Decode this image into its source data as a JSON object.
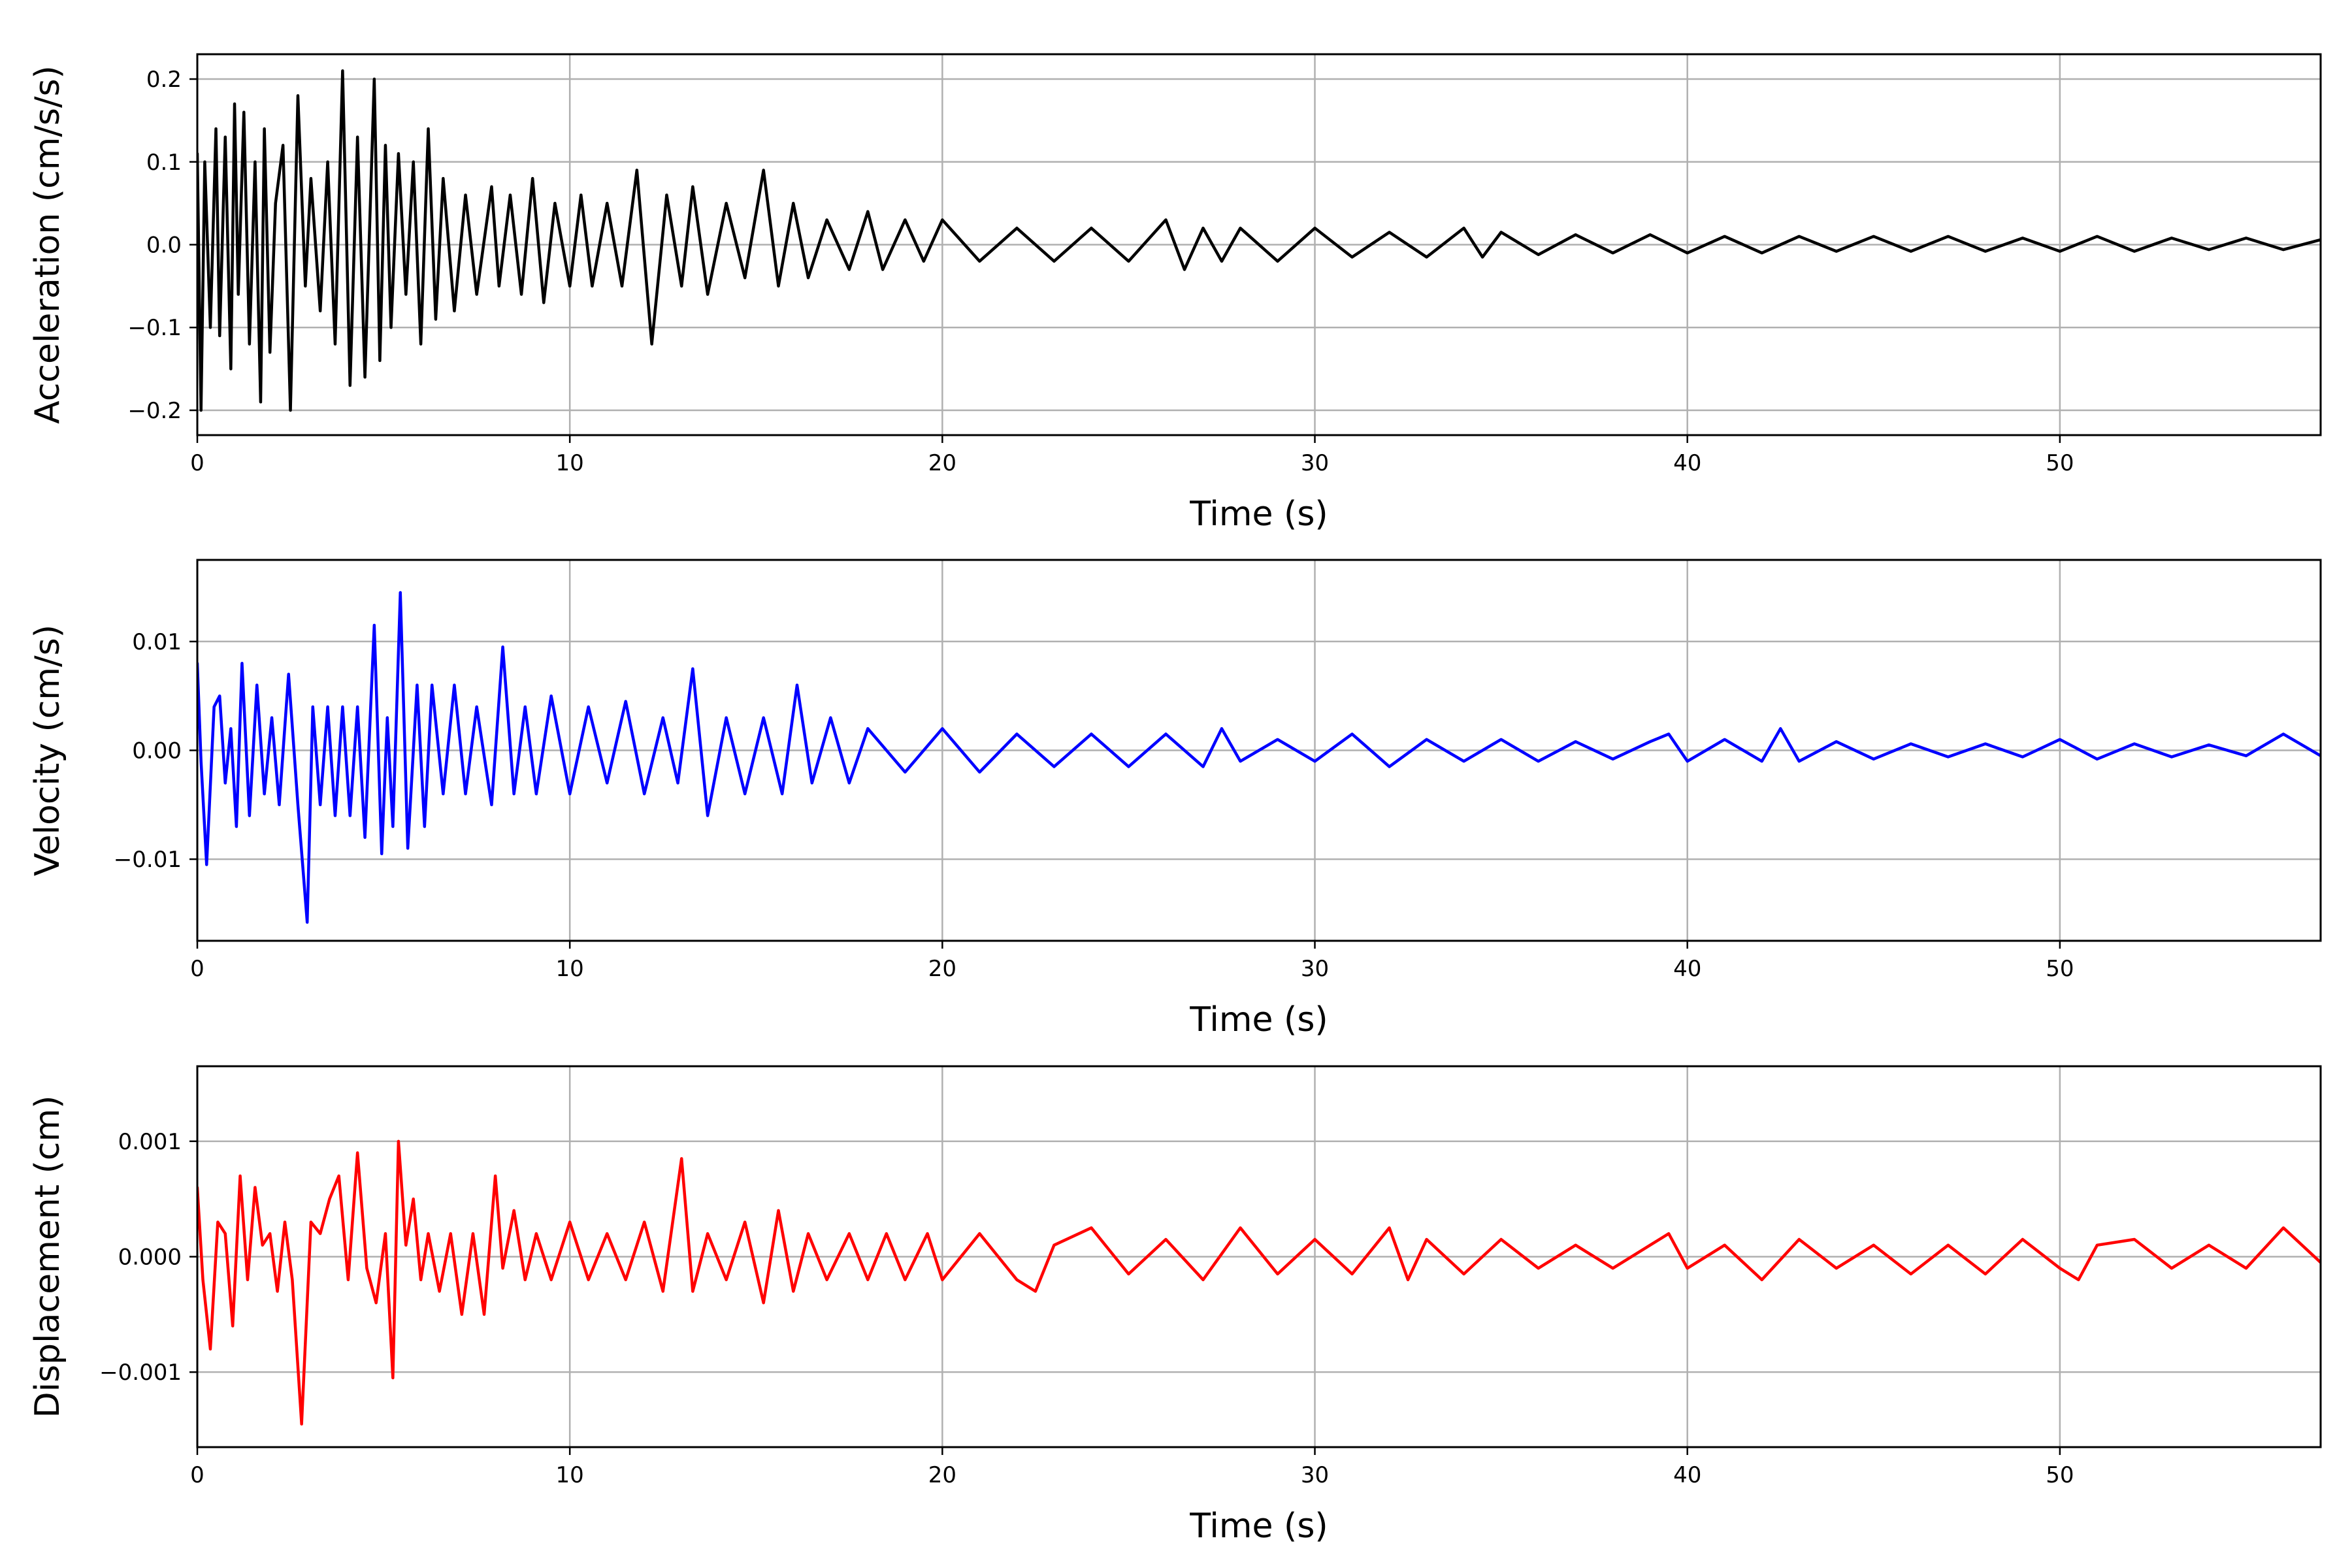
{
  "chart_data": [
    {
      "type": "line",
      "xlabel": "Time (s)",
      "ylabel": "Acceleration (cm/s/s)",
      "xlim": [
        0,
        57
      ],
      "ylim": [
        -0.23,
        0.23
      ],
      "xticks": [
        0,
        10,
        20,
        30,
        40,
        50
      ],
      "xtick_labels": [
        "0",
        "10",
        "20",
        "30",
        "40",
        "50"
      ],
      "yticks": [
        -0.2,
        -0.1,
        0.0,
        0.1,
        0.2
      ],
      "ytick_labels": [
        "−0.2",
        "−0.1",
        "0.0",
        "0.1",
        "0.2"
      ],
      "grid": true,
      "color": "#000000",
      "series": [
        {
          "x": [
            0,
            0.1,
            0.2,
            0.35,
            0.5,
            0.6,
            0.75,
            0.9,
            1.0,
            1.1,
            1.25,
            1.4,
            1.55,
            1.7,
            1.8,
            1.95,
            2.1,
            2.3,
            2.5,
            2.7,
            2.9,
            3.05,
            3.3,
            3.5,
            3.7,
            3.9,
            4.1,
            4.3,
            4.5,
            4.75,
            4.9,
            5.05,
            5.2,
            5.4,
            5.6,
            5.8,
            6.0,
            6.2,
            6.4,
            6.6,
            6.9,
            7.2,
            7.5,
            7.9,
            8.1,
            8.4,
            8.7,
            9.0,
            9.3,
            9.6,
            10.0,
            10.3,
            10.6,
            11.0,
            11.4,
            11.8,
            12.2,
            12.6,
            13.0,
            13.3,
            13.7,
            14.2,
            14.7,
            15.2,
            15.6,
            16.0,
            16.4,
            16.9,
            17.5,
            18.0,
            18.4,
            19.0,
            19.5,
            20.0,
            21.0,
            22.0,
            23.0,
            24.0,
            25.0,
            26.0,
            26.5,
            27.0,
            27.5,
            28.0,
            29.0,
            30.0,
            31.0,
            32.0,
            33.0,
            34.0,
            34.5,
            35.0,
            36.0,
            37.0,
            38.0,
            39.0,
            40.0,
            41.0,
            42.0,
            43.0,
            44.0,
            45.0,
            46.0,
            47.0,
            48.0,
            49.0,
            50.0,
            51.0,
            52.0,
            53.0,
            54.0,
            55.0,
            56.0,
            57.0
          ],
          "y": [
            0.11,
            -0.2,
            0.1,
            -0.1,
            0.14,
            -0.11,
            0.13,
            -0.15,
            0.17,
            -0.06,
            0.16,
            -0.12,
            0.1,
            -0.19,
            0.14,
            -0.13,
            0.05,
            0.12,
            -0.2,
            0.18,
            -0.05,
            0.08,
            -0.08,
            0.1,
            -0.12,
            0.21,
            -0.17,
            0.13,
            -0.16,
            0.2,
            -0.14,
            0.12,
            -0.1,
            0.11,
            -0.06,
            0.1,
            -0.12,
            0.14,
            -0.09,
            0.08,
            -0.08,
            0.06,
            -0.06,
            0.07,
            -0.05,
            0.06,
            -0.06,
            0.08,
            -0.07,
            0.05,
            -0.05,
            0.06,
            -0.05,
            0.05,
            -0.05,
            0.09,
            -0.12,
            0.06,
            -0.05,
            0.07,
            -0.06,
            0.05,
            -0.04,
            0.09,
            -0.05,
            0.05,
            -0.04,
            0.03,
            -0.03,
            0.04,
            -0.03,
            0.03,
            -0.02,
            0.03,
            -0.02,
            0.02,
            -0.02,
            0.02,
            -0.02,
            0.03,
            -0.03,
            0.02,
            -0.02,
            0.02,
            -0.02,
            0.02,
            -0.015,
            0.015,
            -0.015,
            0.02,
            -0.015,
            0.015,
            -0.012,
            0.012,
            -0.01,
            0.012,
            -0.01,
            0.01,
            -0.01,
            0.01,
            -0.008,
            0.01,
            -0.008,
            0.01,
            -0.008,
            0.008,
            -0.008,
            0.01,
            -0.008,
            0.008,
            -0.006,
            0.008,
            -0.006,
            0.006
          ]
        }
      ]
    },
    {
      "type": "line",
      "xlabel": "Time (s)",
      "ylabel": "Velocity (cm/s)",
      "xlim": [
        0,
        57
      ],
      "ylim": [
        -0.0175,
        0.0175
      ],
      "xticks": [
        0,
        10,
        20,
        30,
        40,
        50
      ],
      "xtick_labels": [
        "0",
        "10",
        "20",
        "30",
        "40",
        "50"
      ],
      "yticks": [
        -0.01,
        0.0,
        0.01
      ],
      "ytick_labels": [
        "−0.01",
        "0.00",
        "0.01"
      ],
      "grid": true,
      "color": "#0000ff",
      "series": [
        {
          "x": [
            0,
            0.1,
            0.25,
            0.45,
            0.6,
            0.75,
            0.9,
            1.05,
            1.2,
            1.4,
            1.6,
            1.8,
            2.0,
            2.2,
            2.45,
            2.7,
            2.95,
            3.1,
            3.3,
            3.5,
            3.7,
            3.9,
            4.1,
            4.3,
            4.5,
            4.75,
            4.95,
            5.1,
            5.25,
            5.45,
            5.65,
            5.9,
            6.1,
            6.3,
            6.6,
            6.9,
            7.2,
            7.5,
            7.9,
            8.2,
            8.5,
            8.8,
            9.1,
            9.5,
            10.0,
            10.5,
            11.0,
            11.5,
            12.0,
            12.5,
            12.9,
            13.3,
            13.7,
            14.2,
            14.7,
            15.2,
            15.7,
            16.1,
            16.5,
            17.0,
            17.5,
            18.0,
            19.0,
            20.0,
            21.0,
            22.0,
            23.0,
            24.0,
            25.0,
            26.0,
            27.0,
            27.5,
            28.0,
            29.0,
            30.0,
            31.0,
            32.0,
            33.0,
            34.0,
            35.0,
            36.0,
            37.0,
            38.0,
            39.0,
            39.5,
            40.0,
            41.0,
            42.0,
            42.5,
            43.0,
            44.0,
            45.0,
            46.0,
            47.0,
            48.0,
            49.0,
            50.0,
            51.0,
            52.0,
            53.0,
            54.0,
            55.0,
            56.0,
            57.0
          ],
          "y": [
            0.008,
            -0.001,
            -0.0105,
            0.004,
            0.005,
            -0.003,
            0.002,
            -0.007,
            0.008,
            -0.006,
            0.006,
            -0.004,
            0.003,
            -0.005,
            0.007,
            -0.005,
            -0.0158,
            0.004,
            -0.005,
            0.004,
            -0.006,
            0.004,
            -0.006,
            0.004,
            -0.008,
            0.0115,
            -0.0095,
            0.003,
            -0.007,
            0.0145,
            -0.009,
            0.006,
            -0.007,
            0.006,
            -0.004,
            0.006,
            -0.004,
            0.004,
            -0.005,
            0.0095,
            -0.004,
            0.004,
            -0.004,
            0.005,
            -0.004,
            0.004,
            -0.003,
            0.0045,
            -0.004,
            0.003,
            -0.003,
            0.0075,
            -0.006,
            0.003,
            -0.004,
            0.003,
            -0.004,
            0.006,
            -0.003,
            0.003,
            -0.003,
            0.002,
            -0.002,
            0.002,
            -0.002,
            0.0015,
            -0.0015,
            0.0015,
            -0.0015,
            0.0015,
            -0.0015,
            0.002,
            -0.001,
            0.001,
            -0.001,
            0.0015,
            -0.0015,
            0.001,
            -0.001,
            0.001,
            -0.001,
            0.0008,
            -0.0008,
            0.0008,
            0.0015,
            -0.001,
            0.001,
            -0.001,
            0.002,
            -0.001,
            0.0008,
            -0.0008,
            0.0006,
            -0.0006,
            0.0006,
            -0.0006,
            0.001,
            -0.0008,
            0.0006,
            -0.0006,
            0.0005,
            -0.0005,
            0.0015,
            -0.0005
          ]
        }
      ]
    },
    {
      "type": "line",
      "xlabel": "Time (s)",
      "ylabel": "Displacement (cm)",
      "xlim": [
        0,
        57
      ],
      "ylim": [
        -0.00165,
        0.00165
      ],
      "xticks": [
        0,
        10,
        20,
        30,
        40,
        50
      ],
      "xtick_labels": [
        "0",
        "10",
        "20",
        "30",
        "40",
        "50"
      ],
      "yticks": [
        -0.001,
        0.0,
        0.001
      ],
      "ytick_labels": [
        "−0.001",
        "0.000",
        "0.001"
      ],
      "grid": true,
      "color": "#ff0000",
      "series": [
        {
          "x": [
            0,
            0.15,
            0.35,
            0.55,
            0.75,
            0.95,
            1.15,
            1.35,
            1.55,
            1.75,
            1.95,
            2.15,
            2.35,
            2.55,
            2.8,
            3.05,
            3.3,
            3.55,
            3.8,
            4.05,
            4.3,
            4.55,
            4.8,
            5.05,
            5.25,
            5.4,
            5.6,
            5.8,
            6.0,
            6.2,
            6.5,
            6.8,
            7.1,
            7.4,
            7.7,
            8.0,
            8.2,
            8.5,
            8.8,
            9.1,
            9.5,
            10.0,
            10.5,
            11.0,
            11.5,
            12.0,
            12.5,
            13.0,
            13.3,
            13.7,
            14.2,
            14.7,
            15.2,
            15.6,
            16.0,
            16.4,
            16.9,
            17.5,
            18.0,
            18.5,
            19.0,
            19.6,
            20.0,
            21.0,
            22.0,
            22.5,
            23.0,
            24.0,
            25.0,
            26.0,
            27.0,
            28.0,
            29.0,
            30.0,
            31.0,
            32.0,
            32.5,
            33.0,
            34.0,
            35.0,
            36.0,
            37.0,
            38.0,
            39.0,
            39.5,
            40.0,
            41.0,
            42.0,
            43.0,
            44.0,
            45.0,
            46.0,
            47.0,
            48.0,
            49.0,
            50.0,
            50.5,
            51.0,
            52.0,
            53.0,
            54.0,
            55.0,
            56.0,
            57.0
          ],
          "y": [
            0.0006,
            -0.0002,
            -0.0008,
            0.0003,
            0.0002,
            -0.0006,
            0.0007,
            -0.0002,
            0.0006,
            0.0001,
            0.0002,
            -0.0003,
            0.0003,
            -0.0002,
            -0.00145,
            0.0003,
            0.0002,
            0.0005,
            0.0007,
            -0.0002,
            0.0009,
            -0.0001,
            -0.0004,
            0.0002,
            -0.00105,
            0.001,
            0.0001,
            0.0005,
            -0.0002,
            0.0002,
            -0.0003,
            0.0002,
            -0.0005,
            0.0002,
            -0.0005,
            0.0007,
            -0.0001,
            0.0004,
            -0.0002,
            0.0002,
            -0.0002,
            0.0003,
            -0.0002,
            0.0002,
            -0.0002,
            0.0003,
            -0.0003,
            0.00085,
            -0.0003,
            0.0002,
            -0.0002,
            0.0003,
            -0.0004,
            0.0004,
            -0.0003,
            0.0002,
            -0.0002,
            0.0002,
            -0.0002,
            0.0002,
            -0.0002,
            0.0002,
            -0.0002,
            0.0002,
            -0.0002,
            -0.0003,
            0.0001,
            0.00025,
            -0.00015,
            0.00015,
            -0.0002,
            0.00025,
            -0.00015,
            0.00015,
            -0.00015,
            0.00025,
            -0.0002,
            0.00015,
            -0.00015,
            0.00015,
            -0.0001,
            0.0001,
            -0.0001,
            0.0001,
            0.0002,
            -0.0001,
            0.0001,
            -0.0002,
            0.00015,
            -0.0001,
            0.0001,
            -0.00015,
            0.0001,
            -0.00015,
            0.00015,
            -0.0001,
            -0.0002,
            0.0001,
            0.00015,
            -0.0001,
            0.0001,
            -0.0001,
            0.00025,
            -5e-05
          ]
        }
      ]
    }
  ]
}
